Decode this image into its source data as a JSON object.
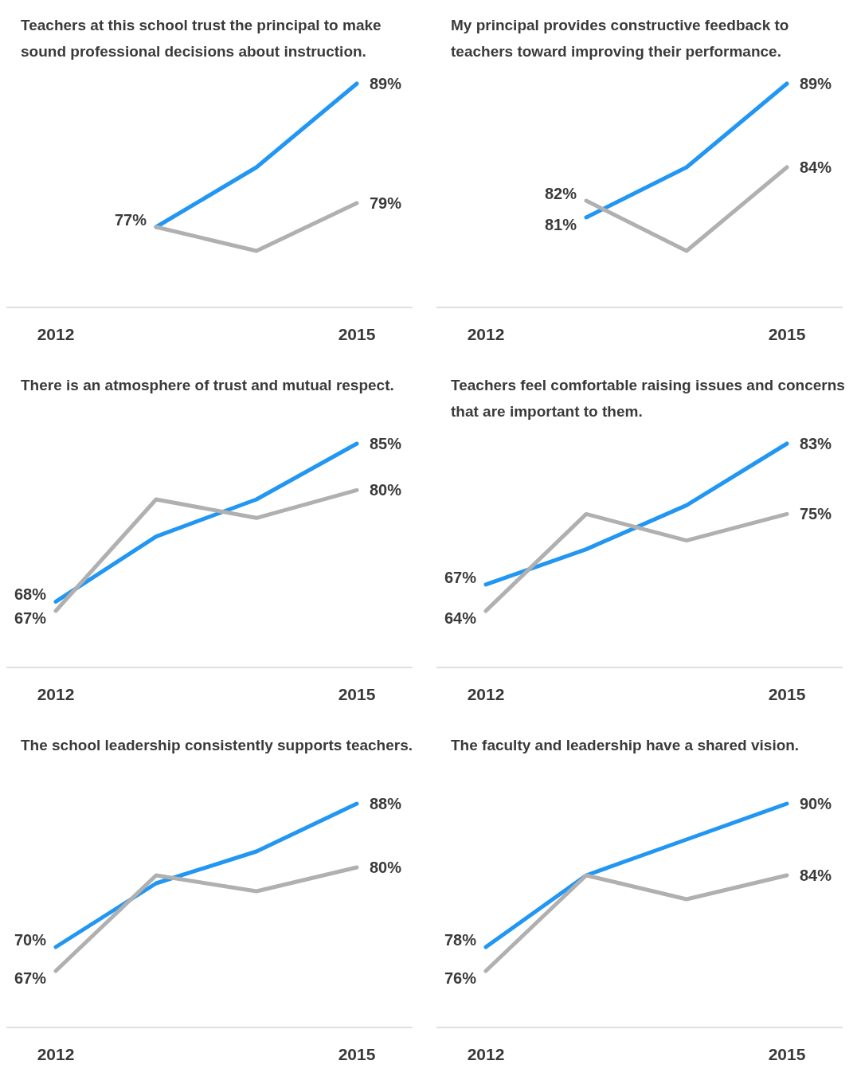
{
  "chart_data": [
    {
      "type": "line",
      "title": "Teachers at this school trust the principal to make sound professional decisions about instruction.",
      "categories": [
        "2012",
        null,
        null,
        "2015"
      ],
      "tick_labels": "x",
      "marker": "none",
      "line_style": "solid",
      "series": [
        {
          "color": "#2196f3",
          "values": [
            null,
            77,
            82,
            89
          ],
          "value_labels": [
            null,
            "77%",
            null,
            "89%"
          ]
        },
        {
          "color": "#b0b0b0",
          "values": [
            null,
            77,
            75,
            79
          ],
          "value_labels": [
            null,
            null,
            null,
            "79%"
          ]
        }
      ]
    },
    {
      "type": "line",
      "title": "My principal provides constructive feedback to teachers toward improving their performance.",
      "categories": [
        "2012",
        null,
        null,
        "2015"
      ],
      "tick_labels": "x",
      "marker": "none",
      "line_style": "solid",
      "series": [
        {
          "color": "#2196f3",
          "values": [
            null,
            81,
            84,
            89
          ],
          "value_labels": [
            null,
            "81%",
            null,
            "89%"
          ]
        },
        {
          "color": "#b0b0b0",
          "values": [
            null,
            82,
            79,
            84
          ],
          "value_labels": [
            null,
            "82%",
            null,
            "84%"
          ]
        }
      ]
    },
    {
      "type": "line",
      "title": "There is an atmosphere of trust and mutual respect.",
      "categories": [
        "2012",
        null,
        null,
        "2015"
      ],
      "tick_labels": "x",
      "marker": "none",
      "line_style": "solid",
      "series": [
        {
          "color": "#2196f3",
          "values": [
            68,
            75,
            79,
            85
          ],
          "value_labels": [
            "68%",
            null,
            null,
            "85%"
          ]
        },
        {
          "color": "#b0b0b0",
          "values": [
            67,
            79,
            77,
            80
          ],
          "value_labels": [
            "67%",
            null,
            null,
            "80%"
          ]
        }
      ]
    },
    {
      "type": "line",
      "title": "Teachers feel comfortable raising issues and concerns that are important to them.",
      "categories": [
        "2012",
        null,
        null,
        "2015"
      ],
      "tick_labels": "x",
      "marker": "none",
      "line_style": "solid",
      "series": [
        {
          "color": "#2196f3",
          "values": [
            67,
            71,
            76,
            83
          ],
          "value_labels": [
            "67%",
            null,
            null,
            "83%"
          ]
        },
        {
          "color": "#b0b0b0",
          "values": [
            64,
            75,
            72,
            75
          ],
          "value_labels": [
            "64%",
            null,
            null,
            "75%"
          ]
        }
      ]
    },
    {
      "type": "line",
      "title": "The school leadership consistently supports teachers.",
      "categories": [
        "2012",
        null,
        null,
        "2015"
      ],
      "tick_labels": "x",
      "marker": "none",
      "line_style": "solid",
      "series": [
        {
          "color": "#2196f3",
          "values": [
            70,
            78,
            82,
            88
          ],
          "value_labels": [
            "70%",
            null,
            null,
            "88%"
          ]
        },
        {
          "color": "#b0b0b0",
          "values": [
            67,
            79,
            77,
            80
          ],
          "value_labels": [
            "67%",
            null,
            null,
            "80%"
          ]
        }
      ]
    },
    {
      "type": "line",
      "title": "The faculty and leadership have a shared vision.",
      "categories": [
        "2012",
        null,
        null,
        "2015"
      ],
      "tick_labels": "x",
      "marker": "none",
      "line_style": "solid",
      "series": [
        {
          "color": "#2196f3",
          "values": [
            78,
            84,
            87,
            90
          ],
          "value_labels": [
            "78%",
            null,
            null,
            "90%"
          ]
        },
        {
          "color": "#b0b0b0",
          "values": [
            76,
            84,
            82,
            84
          ],
          "value_labels": [
            "76%",
            null,
            null,
            "84%"
          ]
        }
      ]
    }
  ]
}
